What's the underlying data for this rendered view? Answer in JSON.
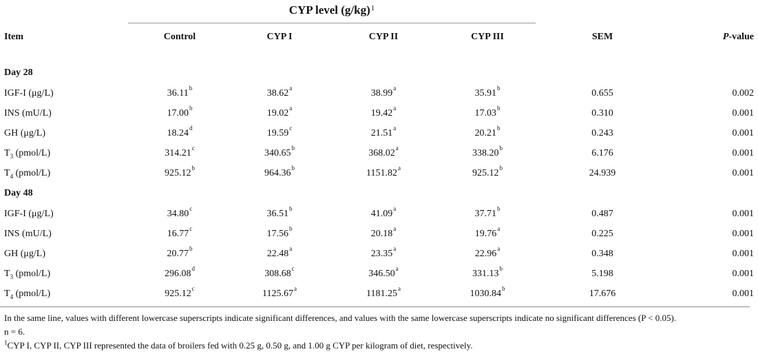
{
  "header": {
    "group_title": "CYP level (g/kg)",
    "group_title_sup": "1",
    "columns": {
      "item": "Item",
      "control": "Control",
      "cyp1": "CYP I",
      "cyp2": "CYP II",
      "cyp3": "CYP III",
      "sem": "SEM",
      "p_italic": "P",
      "p_rest": "-value"
    }
  },
  "sections": [
    {
      "label": "Day 28",
      "rows": [
        {
          "name": "IGF-I (μg/L)",
          "c": "36.11",
          "cs": "b",
          "c1": "38.62",
          "c1s": "a",
          "c2": "38.99",
          "c2s": "a",
          "c3": "35.91",
          "c3s": "b",
          "sem": "0.655",
          "p": "0.002"
        },
        {
          "name": "INS (mU/L)",
          "c": "17.00",
          "cs": "b",
          "c1": "19.02",
          "c1s": "a",
          "c2": "19.42",
          "c2s": "a",
          "c3": "17.03",
          "c3s": "b",
          "sem": "0.310",
          "p": "0.001"
        },
        {
          "name": "GH (μg/L)",
          "c": "18.24",
          "cs": "d",
          "c1": "19.59",
          "c1s": "c",
          "c2": "21.51",
          "c2s": "a",
          "c3": "20.21",
          "c3s": "b",
          "sem": "0.243",
          "p": "0.001"
        },
        {
          "name_main": "T",
          "name_sub": "3",
          "name_rest": " (pmol/L)",
          "c": "314.21",
          "cs": "c",
          "c1": "340.65",
          "c1s": "b",
          "c2": "368.02",
          "c2s": "a",
          "c3": "338.20",
          "c3s": "b",
          "sem": "6.176",
          "p": "0.001"
        },
        {
          "name_main": "T",
          "name_sub": "4",
          "name_rest": " (pmol/L)",
          "c": "925.12",
          "cs": "b",
          "c1": "964.36",
          "c1s": "b",
          "c2": "1151.82",
          "c2s": "a",
          "c3": "925.12",
          "c3s": "b",
          "sem": "24.939",
          "p": "0.001"
        }
      ]
    },
    {
      "label": "Day 48",
      "rows": [
        {
          "name": "IGF-I (μg/L)",
          "c": "34.80",
          "cs": "c",
          "c1": "36.51",
          "c1s": "b",
          "c2": "41.09",
          "c2s": "a",
          "c3": "37.71",
          "c3s": "b",
          "sem": "0.487",
          "p": "0.001"
        },
        {
          "name": "INS (mU/L)",
          "c": "16.77",
          "cs": "c",
          "c1": "17.56",
          "c1s": "b",
          "c2": "20.18",
          "c2s": "a",
          "c3": "19.76",
          "c3s": "a",
          "sem": "0.225",
          "p": "0.001"
        },
        {
          "name": "GH (μg/L)",
          "c": "20.77",
          "cs": "b",
          "c1": "22.48",
          "c1s": "a",
          "c2": "23.35",
          "c2s": "a",
          "c3": "22.96",
          "c3s": "a",
          "sem": "0.348",
          "p": "0.001"
        },
        {
          "name_main": "T",
          "name_sub": "3",
          "name_rest": " (pmol/L)",
          "c": "296.08",
          "cs": "d",
          "c1": "308.68",
          "c1s": "c",
          "c2": "346.50",
          "c2s": "a",
          "c3": "331.13",
          "c3s": "b",
          "sem": "5.198",
          "p": "0.001"
        },
        {
          "name_main": "T",
          "name_sub": "4",
          "name_rest": " (pmol/L)",
          "c": "925.12",
          "cs": "c",
          "c1": "1125.67",
          "c1s": "a",
          "c2": "1181.25",
          "c2s": "a",
          "c3": "1030.84",
          "c3s": "b",
          "sem": "17.676",
          "p": "0.001"
        }
      ]
    }
  ],
  "notes": {
    "line1": "In the same line, values with different lowercase superscripts indicate significant differences, and values with the same lowercase superscripts indicate no significant differences (P < 0.05).",
    "line2": "n = 6.",
    "line3_sup": "1",
    "line3": "CYP I, CYP II, CYP III represented the data of broilers fed with 0.25 g, 0.50 g, and 1.00 g CYP per kilogram of diet, respectively."
  }
}
